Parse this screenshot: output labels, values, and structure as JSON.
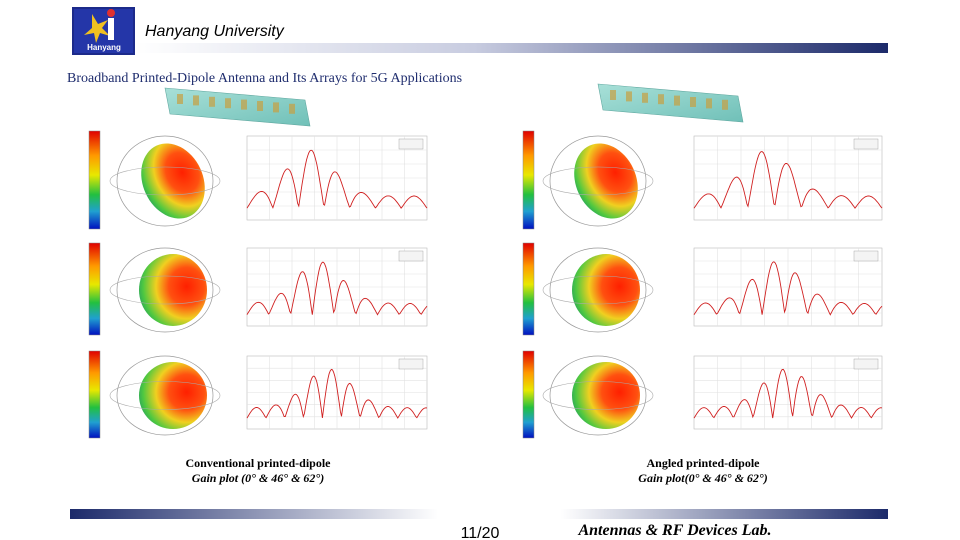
{
  "header": {
    "university": "Hanyang University",
    "logo_text": "Hanyang"
  },
  "title": "Broadband Printed-Dipole Antenna and Its Arrays for 5G Applications",
  "figures": [
    {
      "caption": "Conventional printed-dipole",
      "subcaption": "Gain plot (0° & 46° & 62°)"
    },
    {
      "caption": "Angled printed-dipole",
      "subcaption": "Gain plot(0° & 46° & 62°)"
    }
  ],
  "footer": {
    "page": "11/20",
    "lab": "Antennas & RF Devices Lab."
  }
}
